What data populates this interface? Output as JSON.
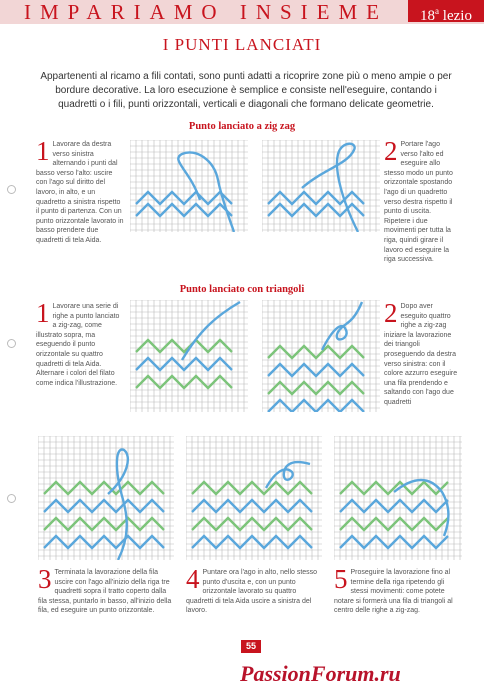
{
  "header": {
    "section_title": "IMPARIAMO INSIEME",
    "lesson_number": "18",
    "lesson_suffix": "a",
    "lesson_word": "lezio"
  },
  "title": "I PUNTI LANCIATI",
  "intro": "Appartenenti al ricamo a fili contati, sono punti adatti a ricoprire zone più o meno ampie o per bordure decorative. La loro esecuzione è semplice e consiste nell'eseguire, contando i quadretti o i fili, punti orizzontali, verticali e diagonali che formano delicate geometrie.",
  "section1": {
    "heading": "Punto lanciato a zig zag",
    "steps": [
      {
        "num": "1",
        "text": "Lavorare da destra verso sinistra alternando i punti dal basso verso l'alto: uscire con l'ago sul diritto del lavoro, in alto, e un quadretto a sinistra rispetto il punto di partenza. Con un punto orizzontale lavorato in basso prendere due quadretti di tela Aida."
      },
      {
        "num": "2",
        "text": "Portare l'ago verso l'alto ed eseguire allo stesso modo un punto orizzontale spostando l'ago di un quadretto verso destra rispetto il punto di uscita. Ripetere i due movimenti per tutta la riga, quindi girare il lavoro ed eseguire la riga successiva."
      }
    ]
  },
  "section2": {
    "heading": "Punto lanciato con triangoli",
    "steps": [
      {
        "num": "1",
        "text": "Lavorare una serie di righe a punto lanciato a zig-zag, come illustrato sopra, ma eseguendo il punto orizzontale su quattro quadretti di tela Aida. Alternare i colori del filato come indica l'illustrazione."
      },
      {
        "num": "2",
        "text": "Dopo aver eseguito quattro righe a zig-zag iniziare la lavorazione dei triangoli proseguendo da destra verso sinistra: con il colore azzurro eseguire una fila prendendo e saltando con l'ago due quadretti"
      },
      {
        "num": "3",
        "text": "Terminata la lavorazione della fila uscire con l'ago all'inizio della riga tre quadretti sopra il tratto coperto dalla fila stessa, puntarlo in basso, all'inizio della fila, ed eseguire un punto orizzontale."
      },
      {
        "num": "4",
        "text": "Puntare ora l'ago in alto, nello stesso punto d'uscita e, con un punto orizzontale lavorato su quattro quadretti di tela Aida uscire a sinistra del lavoro."
      },
      {
        "num": "5",
        "text": "Proseguire la lavorazione fino al termine della riga ripetendo gli stessi movimenti: come potete notare si formerà una fila di triangoli al centro delle righe a zig-zag."
      }
    ]
  },
  "page_number": "55",
  "watermark": "PassionForum.ru",
  "colors": {
    "accent": "#c8141e",
    "header_band": "#f2d6d6",
    "thread_blue": "#5aa7dc",
    "thread_green": "#7cc47a",
    "grid": "#b9b9b9"
  }
}
